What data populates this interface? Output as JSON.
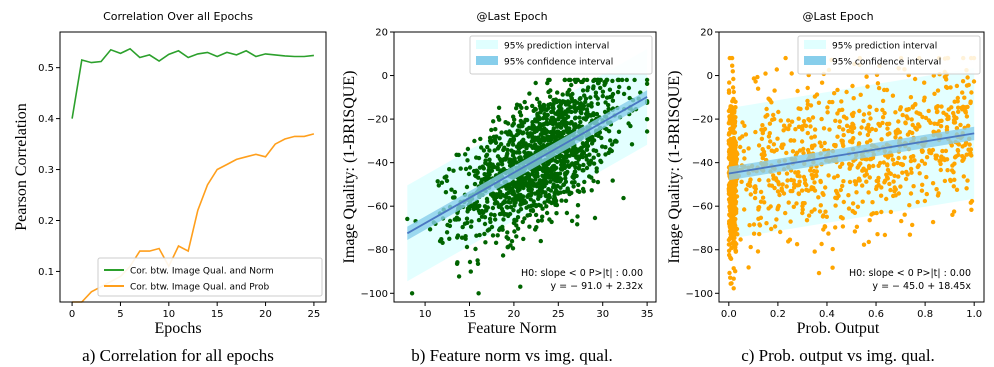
{
  "chart_data": [
    {
      "type": "line",
      "title": "Correlation Over all Epochs",
      "xlabel": "Epochs",
      "ylabel": "Pearson Correlation",
      "caption": "a) Correlation for all epochs",
      "xlim": [
        -1.25,
        26.25
      ],
      "ylim": [
        0.04,
        0.57
      ],
      "xticks": [
        0,
        5,
        10,
        15,
        20,
        25
      ],
      "yticks": [
        0.1,
        0.2,
        0.3,
        0.4,
        0.5
      ],
      "legend_position": "lower-right",
      "series": [
        {
          "name": "Cor. btw. Image Qual. and Norm",
          "color": "#2ca02c",
          "x": [
            0,
            1,
            2,
            3,
            4,
            5,
            6,
            7,
            8,
            9,
            10,
            11,
            12,
            13,
            14,
            15,
            16,
            17,
            18,
            19,
            20,
            21,
            22,
            23,
            24,
            25
          ],
          "values": [
            0.4,
            0.515,
            0.51,
            0.512,
            0.535,
            0.528,
            0.537,
            0.52,
            0.525,
            0.513,
            0.526,
            0.533,
            0.52,
            0.527,
            0.53,
            0.522,
            0.53,
            0.525,
            0.533,
            0.522,
            0.527,
            0.525,
            0.523,
            0.522,
            0.522,
            0.524
          ]
        },
        {
          "name": "Cor. btw. Image Qual. and Prob",
          "color": "#ff9f1c",
          "x": [
            0,
            1,
            2,
            3,
            4,
            5,
            6,
            7,
            8,
            9,
            10,
            11,
            12,
            13,
            14,
            15,
            16,
            17,
            18,
            19,
            20,
            21,
            22,
            23,
            24,
            25
          ],
          "values": [
            0.04,
            0.04,
            0.06,
            0.07,
            0.08,
            0.09,
            0.11,
            0.14,
            0.14,
            0.145,
            0.11,
            0.15,
            0.14,
            0.22,
            0.27,
            0.3,
            0.31,
            0.32,
            0.325,
            0.33,
            0.325,
            0.35,
            0.36,
            0.365,
            0.365,
            0.37
          ]
        }
      ]
    },
    {
      "type": "scatter",
      "title": "@Last Epoch",
      "xlabel": "Feature Norm",
      "ylabel": "Image Quality: (1-BRISQUE)",
      "caption": "b) Feature norm vs img. qual.",
      "xlim": [
        6.5,
        36
      ],
      "ylim": [
        -104,
        20
      ],
      "xticks": [
        10,
        15,
        20,
        25,
        30,
        35
      ],
      "yticks": [
        -100,
        -80,
        -60,
        -40,
        -20,
        0,
        20
      ],
      "point_color": "#006400",
      "fit": {
        "intercept": -91.0,
        "slope": 2.32,
        "x_range": [
          8,
          35
        ]
      },
      "prediction_band_halfwidth": 22,
      "point_cloud": {
        "count": 1500,
        "x_mean": 23,
        "x_sd": 4.5,
        "x_range": [
          8,
          35
        ],
        "residual_sd": 14,
        "y_range": [
          -100,
          -2
        ]
      },
      "legend_position": "top-right",
      "legend": [
        "95% prediction interval",
        "95% confidence interval"
      ],
      "annotation": [
        "H0: slope < 0   P>|t| : 0.00",
        "y = − 91.0 + 2.32x"
      ]
    },
    {
      "type": "scatter",
      "title": "@Last Epoch",
      "xlabel": "Prob. Output",
      "ylabel": "Image Quality: (1-BRISQUE)",
      "caption": "c) Prob. output vs img. qual.",
      "xlim": [
        -0.04,
        1.04
      ],
      "ylim": [
        -104,
        20
      ],
      "xticks": [
        0.0,
        0.2,
        0.4,
        0.6,
        0.8,
        1.0
      ],
      "yticks": [
        -100,
        -80,
        -60,
        -40,
        -20,
        0,
        20
      ],
      "point_color": "#ffa500",
      "fit": {
        "intercept": -45.0,
        "slope": 18.45,
        "x_range": [
          0,
          1
        ]
      },
      "prediction_band_halfwidth": 30,
      "point_cloud": {
        "count": 1300,
        "x_dense_fraction": 0.35,
        "x_dense_max": 0.03,
        "residual_sd": 18,
        "y_range": [
          -98,
          8
        ]
      },
      "legend_position": "top-right",
      "legend": [
        "95% prediction interval",
        "95% confidence interval"
      ],
      "annotation": [
        "H0: slope < 0   P>|t| : 0.00",
        "y = − 45.0 + 18.45x"
      ]
    }
  ]
}
